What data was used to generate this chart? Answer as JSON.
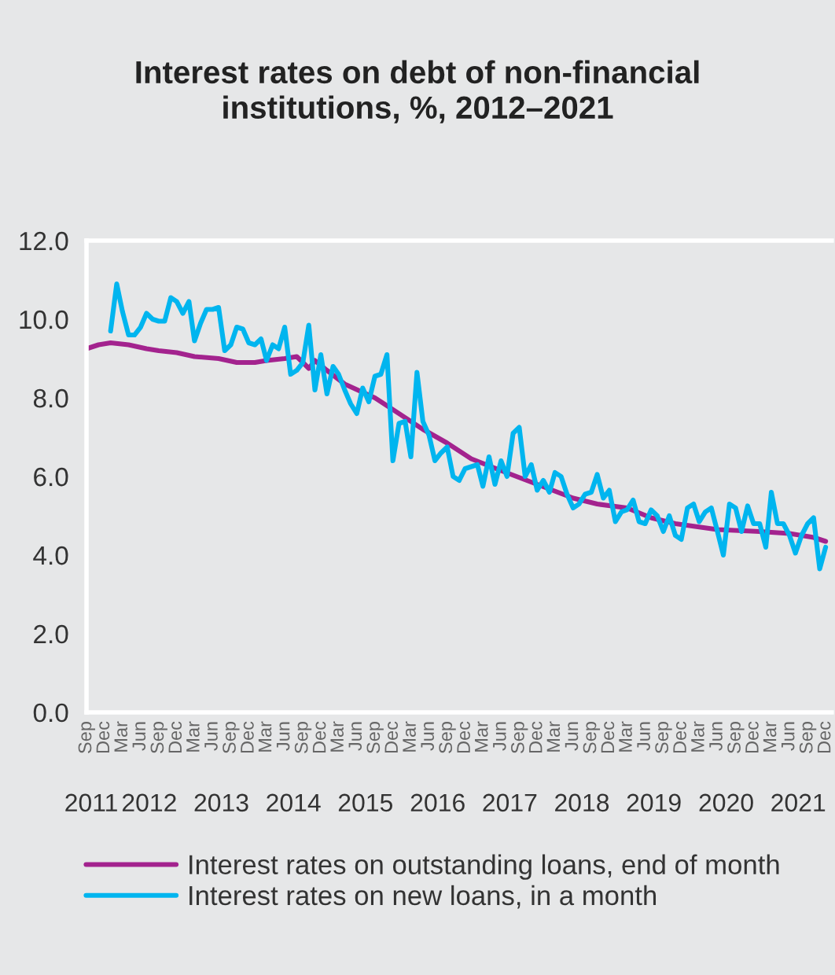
{
  "chart_data": {
    "type": "line",
    "title": "Interest rates on debt of non-financial\ninstitutions, %, 2012–2021",
    "series": [
      {
        "name": "Interest rates on outstanding loans, end of month",
        "color": "#a3238e",
        "x": [
          "2011-09",
          "2011-11",
          "2012-01",
          "2012-04",
          "2012-07",
          "2012-09",
          "2012-12",
          "2013-03",
          "2013-07",
          "2013-10",
          "2014-01",
          "2014-03",
          "2014-06",
          "2014-08",
          "2014-09",
          "2014-10",
          "2014-11",
          "2015-01",
          "2015-04",
          "2015-09",
          "2016-01",
          "2016-05",
          "2016-09",
          "2017-01",
          "2017-06",
          "2017-12",
          "2018-06",
          "2018-10",
          "2019-03",
          "2019-07",
          "2019-11",
          "2020-06",
          "2021-01",
          "2021-06",
          "2021-10",
          "2021-12"
        ],
        "values": [
          9.25,
          9.35,
          9.4,
          9.35,
          9.25,
          9.2,
          9.15,
          9.05,
          9.0,
          8.9,
          8.9,
          8.95,
          9.0,
          9.05,
          8.9,
          8.75,
          8.95,
          8.7,
          8.35,
          8.0,
          7.6,
          7.2,
          6.85,
          6.45,
          6.15,
          5.8,
          5.45,
          5.3,
          5.2,
          4.95,
          4.8,
          4.65,
          4.6,
          4.55,
          4.45,
          4.35
        ]
      },
      {
        "name": "Interest rates on new loans, in a month",
        "color": "#00b5ef",
        "x": [
          "2012-01",
          "2012-02",
          "2012-03",
          "2012-04",
          "2012-05",
          "2012-06",
          "2012-07",
          "2012-08",
          "2012-09",
          "2012-10",
          "2012-11",
          "2012-12",
          "2013-01",
          "2013-02",
          "2013-03",
          "2013-04",
          "2013-05",
          "2013-06",
          "2013-07",
          "2013-08",
          "2013-09",
          "2013-10",
          "2013-11",
          "2013-12",
          "2014-01",
          "2014-02",
          "2014-03",
          "2014-04",
          "2014-05",
          "2014-06",
          "2014-07",
          "2014-08",
          "2014-09",
          "2014-10",
          "2014-11",
          "2014-12",
          "2015-01",
          "2015-02",
          "2015-03",
          "2015-04",
          "2015-05",
          "2015-06",
          "2015-07",
          "2015-08",
          "2015-09",
          "2015-10",
          "2015-11",
          "2015-12",
          "2016-01",
          "2016-02",
          "2016-03",
          "2016-04",
          "2016-05",
          "2016-06",
          "2016-07",
          "2016-08",
          "2016-09",
          "2016-10",
          "2016-11",
          "2016-12",
          "2017-01",
          "2017-02",
          "2017-03",
          "2017-04",
          "2017-05",
          "2017-06",
          "2017-07",
          "2017-08",
          "2017-09",
          "2017-10",
          "2017-11",
          "2017-12",
          "2018-01",
          "2018-02",
          "2018-03",
          "2018-04",
          "2018-05",
          "2018-06",
          "2018-07",
          "2018-08",
          "2018-09",
          "2018-10",
          "2018-11",
          "2018-12",
          "2019-01",
          "2019-02",
          "2019-03",
          "2019-04",
          "2019-05",
          "2019-06",
          "2019-07",
          "2019-08",
          "2019-09",
          "2019-10",
          "2019-11",
          "2019-12",
          "2020-01",
          "2020-02",
          "2020-03",
          "2020-04",
          "2020-05",
          "2020-06",
          "2020-07",
          "2020-08",
          "2020-09",
          "2020-10",
          "2020-11",
          "2020-12",
          "2021-01",
          "2021-02",
          "2021-03",
          "2021-04",
          "2021-05",
          "2021-06",
          "2021-07",
          "2021-08",
          "2021-09",
          "2021-10",
          "2021-11",
          "2021-12"
        ],
        "values": [
          9.7,
          10.9,
          10.2,
          9.6,
          9.6,
          9.8,
          10.15,
          10.0,
          9.95,
          9.95,
          10.55,
          10.45,
          10.15,
          10.45,
          9.45,
          9.9,
          10.25,
          10.25,
          10.3,
          9.2,
          9.35,
          9.8,
          9.75,
          9.4,
          9.35,
          9.5,
          8.95,
          9.35,
          9.25,
          9.8,
          8.6,
          8.7,
          8.9,
          9.85,
          8.2,
          9.1,
          8.1,
          8.8,
          8.6,
          8.2,
          7.85,
          7.6,
          8.25,
          7.9,
          8.55,
          8.6,
          9.1,
          6.4,
          7.35,
          7.4,
          6.5,
          8.65,
          7.4,
          7.05,
          6.4,
          6.6,
          6.75,
          6.0,
          5.9,
          6.2,
          6.25,
          6.3,
          5.75,
          6.5,
          5.8,
          6.4,
          6.0,
          7.1,
          7.25,
          6.0,
          6.3,
          5.65,
          5.9,
          5.6,
          6.1,
          6.0,
          5.55,
          5.2,
          5.3,
          5.55,
          5.6,
          6.05,
          5.45,
          5.65,
          4.85,
          5.1,
          5.15,
          5.4,
          4.85,
          4.8,
          5.15,
          5.0,
          4.6,
          5.0,
          4.5,
          4.4,
          5.2,
          5.3,
          4.85,
          5.1,
          5.2,
          4.6,
          4.0,
          5.3,
          5.2,
          4.6,
          5.25,
          4.8,
          4.8,
          4.2,
          5.6,
          4.8,
          4.8,
          4.5,
          4.05,
          4.5,
          4.8,
          4.95,
          3.65,
          4.2
        ]
      }
    ],
    "xlim": [
      "2011-09",
      "2022-01"
    ],
    "xticks": [
      {
        "value": "2011-09",
        "label": "Sep"
      },
      {
        "value": "2011-12",
        "label": "Dec"
      },
      {
        "value": "2012-03",
        "label": "Mar"
      },
      {
        "value": "2012-06",
        "label": "Jun"
      },
      {
        "value": "2012-09",
        "label": "Sep"
      },
      {
        "value": "2012-12",
        "label": "Dec"
      },
      {
        "value": "2013-03",
        "label": "Mar"
      },
      {
        "value": "2013-06",
        "label": "Jun"
      },
      {
        "value": "2013-09",
        "label": "Sep"
      },
      {
        "value": "2013-12",
        "label": "Dec"
      },
      {
        "value": "2014-03",
        "label": "Mar"
      },
      {
        "value": "2014-06",
        "label": "Jun"
      },
      {
        "value": "2014-09",
        "label": "Sep"
      },
      {
        "value": "2014-12",
        "label": "Dec"
      },
      {
        "value": "2015-03",
        "label": "Mar"
      },
      {
        "value": "2015-06",
        "label": "Jun"
      },
      {
        "value": "2015-09",
        "label": "Sep"
      },
      {
        "value": "2015-12",
        "label": "Dec"
      },
      {
        "value": "2016-03",
        "label": "Mar"
      },
      {
        "value": "2016-06",
        "label": "Jun"
      },
      {
        "value": "2016-09",
        "label": "Sep"
      },
      {
        "value": "2016-12",
        "label": "Dec"
      },
      {
        "value": "2017-03",
        "label": "Mar"
      },
      {
        "value": "2017-06",
        "label": "Jun"
      },
      {
        "value": "2017-09",
        "label": "Sep"
      },
      {
        "value": "2017-12",
        "label": "Dec"
      },
      {
        "value": "2018-03",
        "label": "Mar"
      },
      {
        "value": "2018-06",
        "label": "Jun"
      },
      {
        "value": "2018-09",
        "label": "Sep"
      },
      {
        "value": "2018-12",
        "label": "Dec"
      },
      {
        "value": "2019-03",
        "label": "Mar"
      },
      {
        "value": "2019-06",
        "label": "Jun"
      },
      {
        "value": "2019-09",
        "label": "Sep"
      },
      {
        "value": "2019-12",
        "label": "Dec"
      },
      {
        "value": "2020-03",
        "label": "Mar"
      },
      {
        "value": "2020-06",
        "label": "Jun"
      },
      {
        "value": "2020-09",
        "label": "Sep"
      },
      {
        "value": "2020-12",
        "label": "Dec"
      },
      {
        "value": "2021-03",
        "label": "Mar"
      },
      {
        "value": "2021-06",
        "label": "Jun"
      },
      {
        "value": "2021-09",
        "label": "Sep"
      },
      {
        "value": "2021-12",
        "label": "Dec"
      }
    ],
    "x2lim": [
      "2011-09",
      "2022-01"
    ],
    "x2ticks": [
      {
        "value": "2011-09-25",
        "label": "2011"
      },
      {
        "value": "2012-07-15",
        "label": "2012"
      },
      {
        "value": "2013-07-15",
        "label": "2013"
      },
      {
        "value": "2014-07-15",
        "label": "2014"
      },
      {
        "value": "2015-07-15",
        "label": "2015"
      },
      {
        "value": "2016-07-15",
        "label": "2016"
      },
      {
        "value": "2017-07-15",
        "label": "2017"
      },
      {
        "value": "2018-07-15",
        "label": "2018"
      },
      {
        "value": "2019-07-15",
        "label": "2019"
      },
      {
        "value": "2020-07-15",
        "label": "2020"
      },
      {
        "value": "2021-07-15",
        "label": "2021"
      }
    ],
    "ylim": [
      0,
      12
    ],
    "yticks": [
      {
        "value": 0,
        "label": "0.0"
      },
      {
        "value": 2,
        "label": "2.0"
      },
      {
        "value": 4,
        "label": "4.0"
      },
      {
        "value": 6,
        "label": "6.0"
      },
      {
        "value": 8,
        "label": "8.0"
      },
      {
        "value": 10,
        "label": "10.0"
      },
      {
        "value": 12,
        "label": "12.0"
      }
    ],
    "legend": "bottom"
  }
}
